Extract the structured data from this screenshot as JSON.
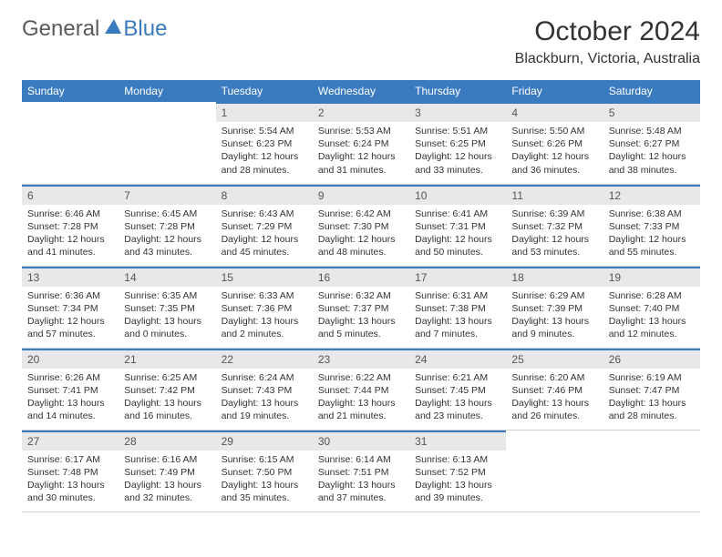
{
  "logo": {
    "general": "General",
    "blue": "Blue"
  },
  "title": "October 2024",
  "location": "Blackburn, Victoria, Australia",
  "colors": {
    "header_bg": "#3a7bbf",
    "header_text": "#ffffff",
    "daynum_bg": "#e8e8e8",
    "cell_border_top": "#3a7bbf",
    "text": "#333333"
  },
  "fonts": {
    "title_size": 30,
    "location_size": 16,
    "header_size": 12,
    "daynum_size": 12,
    "body_size": 10.5
  },
  "day_headers": [
    "Sunday",
    "Monday",
    "Tuesday",
    "Wednesday",
    "Thursday",
    "Friday",
    "Saturday"
  ],
  "weeks": [
    [
      {
        "empty": true
      },
      {
        "empty": true
      },
      {
        "num": "1",
        "sunrise": "Sunrise: 5:54 AM",
        "sunset": "Sunset: 6:23 PM",
        "daylight": "Daylight: 12 hours and 28 minutes."
      },
      {
        "num": "2",
        "sunrise": "Sunrise: 5:53 AM",
        "sunset": "Sunset: 6:24 PM",
        "daylight": "Daylight: 12 hours and 31 minutes."
      },
      {
        "num": "3",
        "sunrise": "Sunrise: 5:51 AM",
        "sunset": "Sunset: 6:25 PM",
        "daylight": "Daylight: 12 hours and 33 minutes."
      },
      {
        "num": "4",
        "sunrise": "Sunrise: 5:50 AM",
        "sunset": "Sunset: 6:26 PM",
        "daylight": "Daylight: 12 hours and 36 minutes."
      },
      {
        "num": "5",
        "sunrise": "Sunrise: 5:48 AM",
        "sunset": "Sunset: 6:27 PM",
        "daylight": "Daylight: 12 hours and 38 minutes."
      }
    ],
    [
      {
        "num": "6",
        "sunrise": "Sunrise: 6:46 AM",
        "sunset": "Sunset: 7:28 PM",
        "daylight": "Daylight: 12 hours and 41 minutes."
      },
      {
        "num": "7",
        "sunrise": "Sunrise: 6:45 AM",
        "sunset": "Sunset: 7:28 PM",
        "daylight": "Daylight: 12 hours and 43 minutes."
      },
      {
        "num": "8",
        "sunrise": "Sunrise: 6:43 AM",
        "sunset": "Sunset: 7:29 PM",
        "daylight": "Daylight: 12 hours and 45 minutes."
      },
      {
        "num": "9",
        "sunrise": "Sunrise: 6:42 AM",
        "sunset": "Sunset: 7:30 PM",
        "daylight": "Daylight: 12 hours and 48 minutes."
      },
      {
        "num": "10",
        "sunrise": "Sunrise: 6:41 AM",
        "sunset": "Sunset: 7:31 PM",
        "daylight": "Daylight: 12 hours and 50 minutes."
      },
      {
        "num": "11",
        "sunrise": "Sunrise: 6:39 AM",
        "sunset": "Sunset: 7:32 PM",
        "daylight": "Daylight: 12 hours and 53 minutes."
      },
      {
        "num": "12",
        "sunrise": "Sunrise: 6:38 AM",
        "sunset": "Sunset: 7:33 PM",
        "daylight": "Daylight: 12 hours and 55 minutes."
      }
    ],
    [
      {
        "num": "13",
        "sunrise": "Sunrise: 6:36 AM",
        "sunset": "Sunset: 7:34 PM",
        "daylight": "Daylight: 12 hours and 57 minutes."
      },
      {
        "num": "14",
        "sunrise": "Sunrise: 6:35 AM",
        "sunset": "Sunset: 7:35 PM",
        "daylight": "Daylight: 13 hours and 0 minutes."
      },
      {
        "num": "15",
        "sunrise": "Sunrise: 6:33 AM",
        "sunset": "Sunset: 7:36 PM",
        "daylight": "Daylight: 13 hours and 2 minutes."
      },
      {
        "num": "16",
        "sunrise": "Sunrise: 6:32 AM",
        "sunset": "Sunset: 7:37 PM",
        "daylight": "Daylight: 13 hours and 5 minutes."
      },
      {
        "num": "17",
        "sunrise": "Sunrise: 6:31 AM",
        "sunset": "Sunset: 7:38 PM",
        "daylight": "Daylight: 13 hours and 7 minutes."
      },
      {
        "num": "18",
        "sunrise": "Sunrise: 6:29 AM",
        "sunset": "Sunset: 7:39 PM",
        "daylight": "Daylight: 13 hours and 9 minutes."
      },
      {
        "num": "19",
        "sunrise": "Sunrise: 6:28 AM",
        "sunset": "Sunset: 7:40 PM",
        "daylight": "Daylight: 13 hours and 12 minutes."
      }
    ],
    [
      {
        "num": "20",
        "sunrise": "Sunrise: 6:26 AM",
        "sunset": "Sunset: 7:41 PM",
        "daylight": "Daylight: 13 hours and 14 minutes."
      },
      {
        "num": "21",
        "sunrise": "Sunrise: 6:25 AM",
        "sunset": "Sunset: 7:42 PM",
        "daylight": "Daylight: 13 hours and 16 minutes."
      },
      {
        "num": "22",
        "sunrise": "Sunrise: 6:24 AM",
        "sunset": "Sunset: 7:43 PM",
        "daylight": "Daylight: 13 hours and 19 minutes."
      },
      {
        "num": "23",
        "sunrise": "Sunrise: 6:22 AM",
        "sunset": "Sunset: 7:44 PM",
        "daylight": "Daylight: 13 hours and 21 minutes."
      },
      {
        "num": "24",
        "sunrise": "Sunrise: 6:21 AM",
        "sunset": "Sunset: 7:45 PM",
        "daylight": "Daylight: 13 hours and 23 minutes."
      },
      {
        "num": "25",
        "sunrise": "Sunrise: 6:20 AM",
        "sunset": "Sunset: 7:46 PM",
        "daylight": "Daylight: 13 hours and 26 minutes."
      },
      {
        "num": "26",
        "sunrise": "Sunrise: 6:19 AM",
        "sunset": "Sunset: 7:47 PM",
        "daylight": "Daylight: 13 hours and 28 minutes."
      }
    ],
    [
      {
        "num": "27",
        "sunrise": "Sunrise: 6:17 AM",
        "sunset": "Sunset: 7:48 PM",
        "daylight": "Daylight: 13 hours and 30 minutes."
      },
      {
        "num": "28",
        "sunrise": "Sunrise: 6:16 AM",
        "sunset": "Sunset: 7:49 PM",
        "daylight": "Daylight: 13 hours and 32 minutes."
      },
      {
        "num": "29",
        "sunrise": "Sunrise: 6:15 AM",
        "sunset": "Sunset: 7:50 PM",
        "daylight": "Daylight: 13 hours and 35 minutes."
      },
      {
        "num": "30",
        "sunrise": "Sunrise: 6:14 AM",
        "sunset": "Sunset: 7:51 PM",
        "daylight": "Daylight: 13 hours and 37 minutes."
      },
      {
        "num": "31",
        "sunrise": "Sunrise: 6:13 AM",
        "sunset": "Sunset: 7:52 PM",
        "daylight": "Daylight: 13 hours and 39 minutes."
      },
      {
        "empty": true
      },
      {
        "empty": true
      }
    ]
  ]
}
